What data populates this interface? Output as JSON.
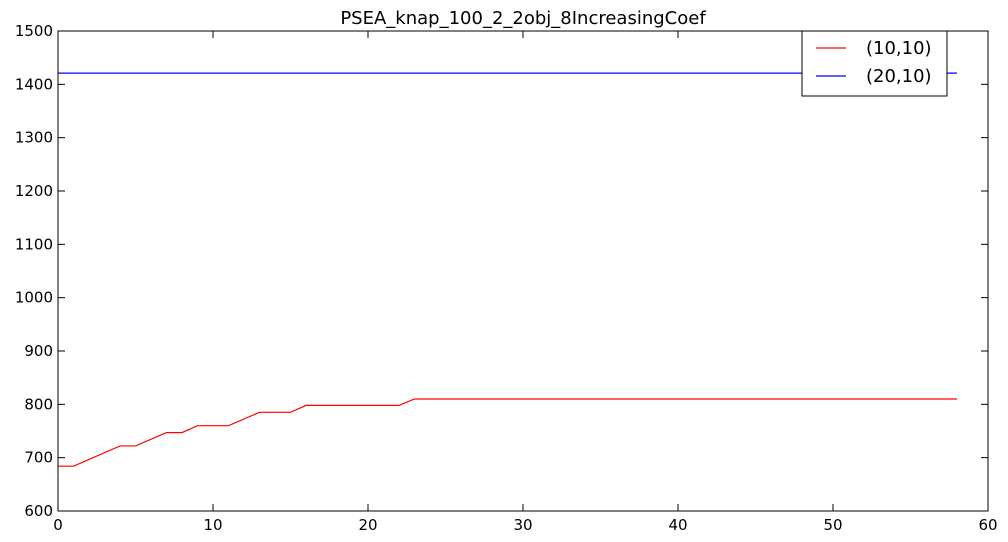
{
  "chart_data": {
    "type": "line",
    "title": "PSEA_knap_100_2_2obj_8IncreasingCoef",
    "xlabel": "",
    "ylabel": "",
    "xlim": [
      0,
      60
    ],
    "ylim": [
      600,
      1500
    ],
    "x_ticks": [
      0,
      10,
      20,
      30,
      40,
      50,
      60
    ],
    "y_ticks": [
      600,
      700,
      800,
      900,
      1000,
      1100,
      1200,
      1300,
      1400,
      1500
    ],
    "grid": false,
    "legend": {
      "position": "top-right"
    },
    "series": [
      {
        "name": "(10,10)",
        "color": "#ff0000",
        "points": [
          [
            0,
            684
          ],
          [
            1,
            684
          ],
          [
            4,
            722
          ],
          [
            5,
            722
          ],
          [
            7,
            747
          ],
          [
            8,
            747
          ],
          [
            9,
            760
          ],
          [
            11,
            760
          ],
          [
            13,
            785
          ],
          [
            15,
            785
          ],
          [
            16,
            798
          ],
          [
            22,
            798
          ],
          [
            23,
            810
          ],
          [
            58,
            810
          ]
        ]
      },
      {
        "name": "(20,10)",
        "color": "#0000ff",
        "points": [
          [
            0,
            1421
          ],
          [
            58,
            1421
          ]
        ]
      }
    ]
  }
}
